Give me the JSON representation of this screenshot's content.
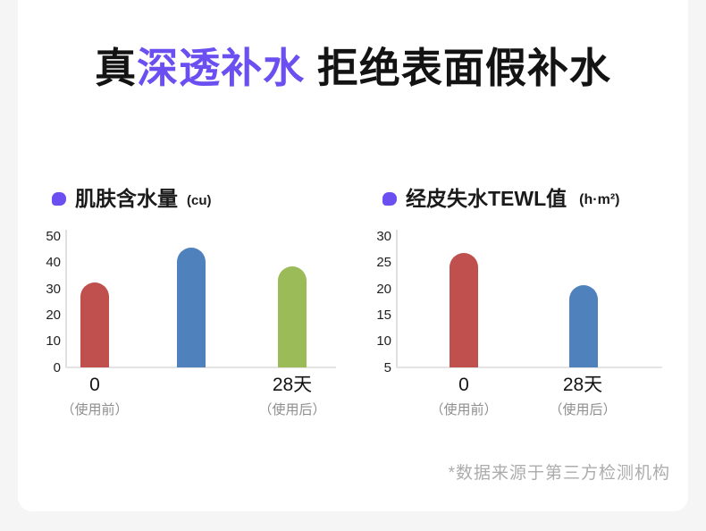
{
  "colors": {
    "background": "#F5F5F6",
    "card": "#FFFFFF",
    "accent_purple": "#6C4FF0",
    "bar_red": "#C0504D",
    "bar_blue": "#4F81BD",
    "bar_green": "#9BBB59"
  },
  "title": {
    "prefix": "真",
    "highlight": "深透补水",
    "suffix": " 拒绝表面假补水"
  },
  "footnote": "*数据来源于第三方检测机构",
  "chart_data": [
    {
      "type": "bar",
      "title": "肌肤含水量",
      "unit": "(cu)",
      "ylim": [
        0,
        50
      ],
      "yticks": [
        50,
        40,
        30,
        20,
        10,
        0
      ],
      "grid": false,
      "bars": [
        {
          "value": 32,
          "color": "#C0504D",
          "label": "0",
          "sublabel": "（使用前）"
        },
        {
          "value": 45,
          "color": "#4F81BD",
          "label": "",
          "sublabel": ""
        },
        {
          "value": 38,
          "color": "#9BBB59",
          "label": "28天",
          "sublabel": "（使用后）"
        }
      ]
    },
    {
      "type": "bar",
      "title": "经皮失水TEWL值",
      "unit": "(h·m²)",
      "ylim": [
        5,
        30
      ],
      "yticks": [
        30,
        25,
        20,
        15,
        10,
        5
      ],
      "grid": false,
      "bars": [
        {
          "value": 26.5,
          "color": "#C0504D",
          "label": "0",
          "sublabel": "（使用前）"
        },
        {
          "value": 20.5,
          "color": "#4F81BD",
          "label": "28天",
          "sublabel": "（使用后）"
        }
      ]
    }
  ]
}
